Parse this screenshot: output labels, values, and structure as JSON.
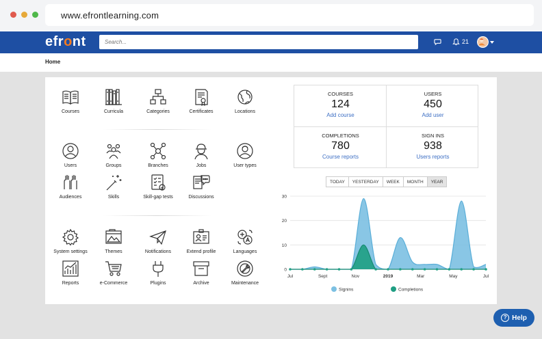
{
  "browser": {
    "url": "www.efrontlearning.com"
  },
  "header": {
    "logo_pre": "efr",
    "logo_o": "o",
    "logo_post": "nt",
    "search_placeholder": "Search...",
    "notification_count": "21"
  },
  "breadcrumb": {
    "home": "Home"
  },
  "tiles": {
    "courses": "Courses",
    "curricula": "Curricula",
    "categories": "Categories",
    "certificates": "Certificates",
    "locations": "Locations",
    "users": "Users",
    "groups": "Groups",
    "branches": "Branches",
    "jobs": "Jobs",
    "user_types": "User types",
    "audiences": "Audiences",
    "skills": "Skills",
    "skill_gap_tests": "Skill-gap tests",
    "discussions": "Discussions",
    "system_settings": "System settings",
    "themes": "Themes",
    "notifications": "Notifications",
    "extend_profile": "Extend profile",
    "languages": "Languages",
    "reports": "Reports",
    "ecommerce": "e-Commerce",
    "plugins": "Plugins",
    "archive": "Archive",
    "maintenance": "Maintenance"
  },
  "stats": {
    "courses": {
      "title": "COURSES",
      "value": "124",
      "link": "Add course"
    },
    "users": {
      "title": "USERS",
      "value": "450",
      "link": "Add user"
    },
    "completions": {
      "title": "COMPLETIONS",
      "value": "780",
      "link": "Course reports"
    },
    "signins": {
      "title": "SIGN INS",
      "value": "938",
      "link": "Users reports"
    }
  },
  "periods": [
    "TODAY",
    "YESTERDAY",
    "WEEK",
    "MONTH",
    "YEAR"
  ],
  "active_period": "YEAR",
  "help": {
    "label": "Help"
  },
  "colors": {
    "brand": "#1e4fa3",
    "accent": "#f47b20",
    "signins": "#6fb8dc",
    "completions": "#23a086"
  },
  "chart_data": {
    "type": "area",
    "x_tick_labels": [
      "Jul",
      "Sept",
      "Nov",
      "2019",
      "Mar",
      "May",
      "Jul"
    ],
    "ylim": [
      0,
      30
    ],
    "y_ticks": [
      0,
      10,
      20,
      30
    ],
    "grid": true,
    "legend_position": "bottom",
    "series": [
      {
        "name": "Signins",
        "values": [
          0,
          0,
          1,
          0,
          0,
          0,
          29,
          2,
          0,
          13,
          3,
          2,
          2,
          0,
          28,
          1,
          2
        ]
      },
      {
        "name": "Completions",
        "values": [
          0,
          0,
          0,
          0,
          0,
          0,
          10,
          0,
          0,
          0,
          0,
          0,
          0,
          0,
          0,
          0,
          0
        ]
      }
    ]
  }
}
